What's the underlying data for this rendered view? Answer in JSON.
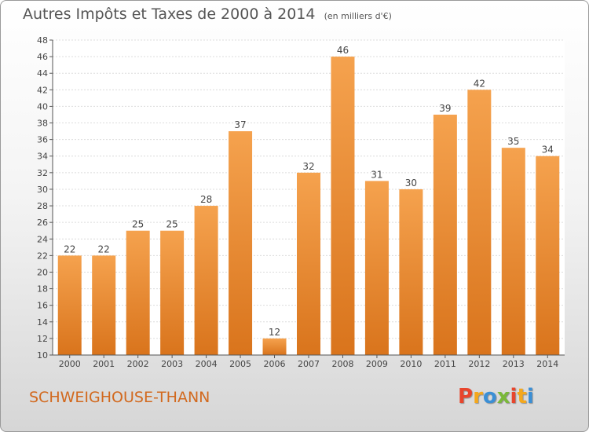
{
  "chart_data": {
    "type": "bar",
    "title": "Autres Impôts et Taxes de 2000 à 2014",
    "subtitle": "(en milliers d'€)",
    "categories": [
      "2000",
      "2001",
      "2002",
      "2003",
      "2004",
      "2005",
      "2006",
      "2007",
      "2008",
      "2009",
      "2010",
      "2011",
      "2012",
      "2013",
      "2014"
    ],
    "values": [
      22,
      22,
      25,
      25,
      28,
      37,
      12,
      32,
      46,
      31,
      30,
      39,
      42,
      35,
      34
    ],
    "ylim": [
      10,
      48
    ],
    "yticks": [
      10,
      12,
      14,
      16,
      18,
      20,
      22,
      24,
      26,
      28,
      30,
      32,
      34,
      36,
      38,
      40,
      42,
      44,
      46,
      48
    ],
    "grid": true,
    "bar_color": "#f08a2e"
  },
  "footer": {
    "town": "SCHWEIGHOUSE-THANN",
    "logo_letters": [
      "P",
      "r",
      "o",
      "x",
      "i",
      "t",
      "i"
    ],
    "logo_colors": [
      "#e8452c",
      "#f4a81d",
      "#3a8fd6",
      "#7ab83a",
      "#e8452c",
      "#f4a81d",
      "#3a8fd6"
    ]
  }
}
